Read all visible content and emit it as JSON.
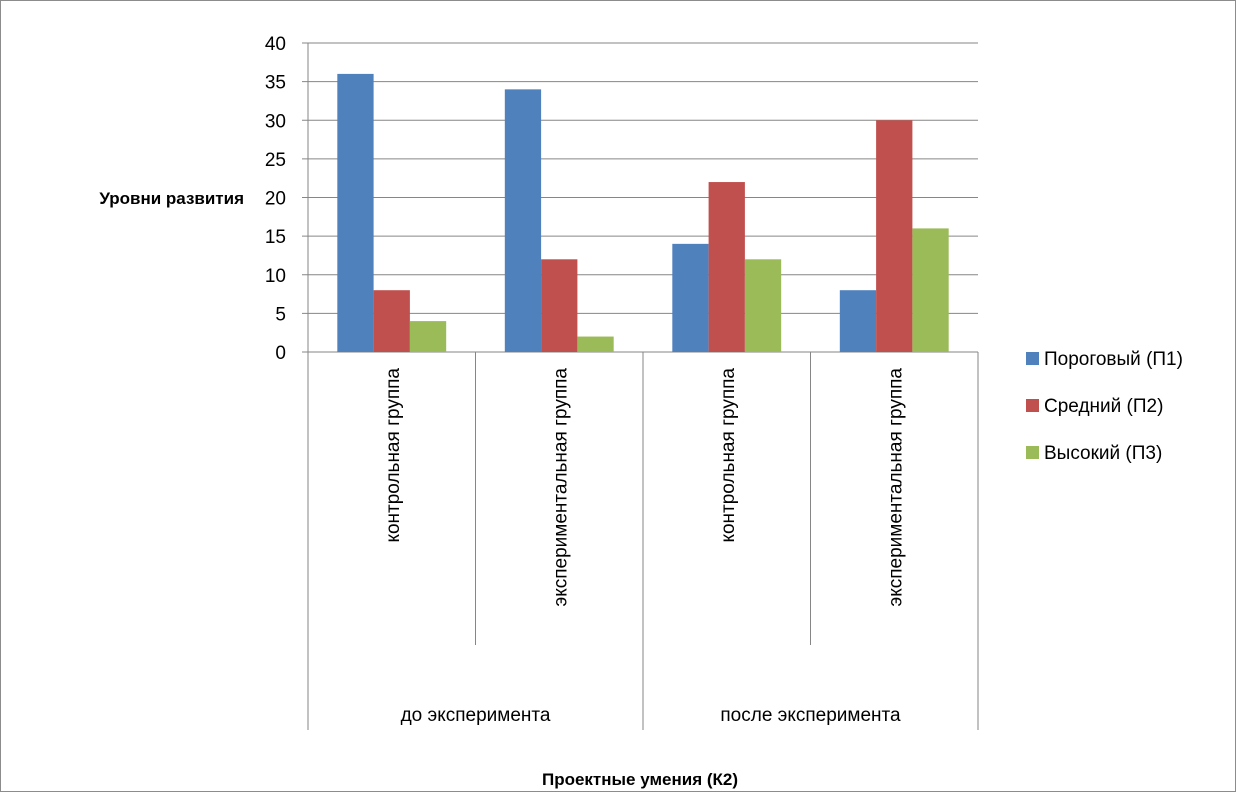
{
  "chart_data": {
    "type": "bar",
    "title": "",
    "ylabel": "Уровни развития",
    "xlabel": "Проектные умения (К2)",
    "ylim": [
      0,
      40
    ],
    "yticks": [
      0,
      5,
      10,
      15,
      20,
      25,
      30,
      35,
      40
    ],
    "grid": true,
    "legend_position": "right",
    "groups": [
      {
        "label": "до эксперимента",
        "categories": [
          "контрольная группа",
          "экспериментальная группа"
        ]
      },
      {
        "label": "после эксперимента",
        "categories": [
          "контрольная группа",
          "экспериментальная группа"
        ]
      }
    ],
    "categories": [
      "контрольная группа",
      "экспериментальная группа",
      "контрольная группа",
      "экспериментальная группа"
    ],
    "series": [
      {
        "name": "Пороговый (П1)",
        "color": "#4F81BD",
        "values": [
          36,
          34,
          14,
          8
        ]
      },
      {
        "name": "Средний (П2)",
        "color": "#C0504D",
        "values": [
          8,
          12,
          22,
          30
        ]
      },
      {
        "name": "Высокий (П3)",
        "color": "#9BBB59",
        "values": [
          4,
          2,
          12,
          16
        ]
      }
    ]
  }
}
